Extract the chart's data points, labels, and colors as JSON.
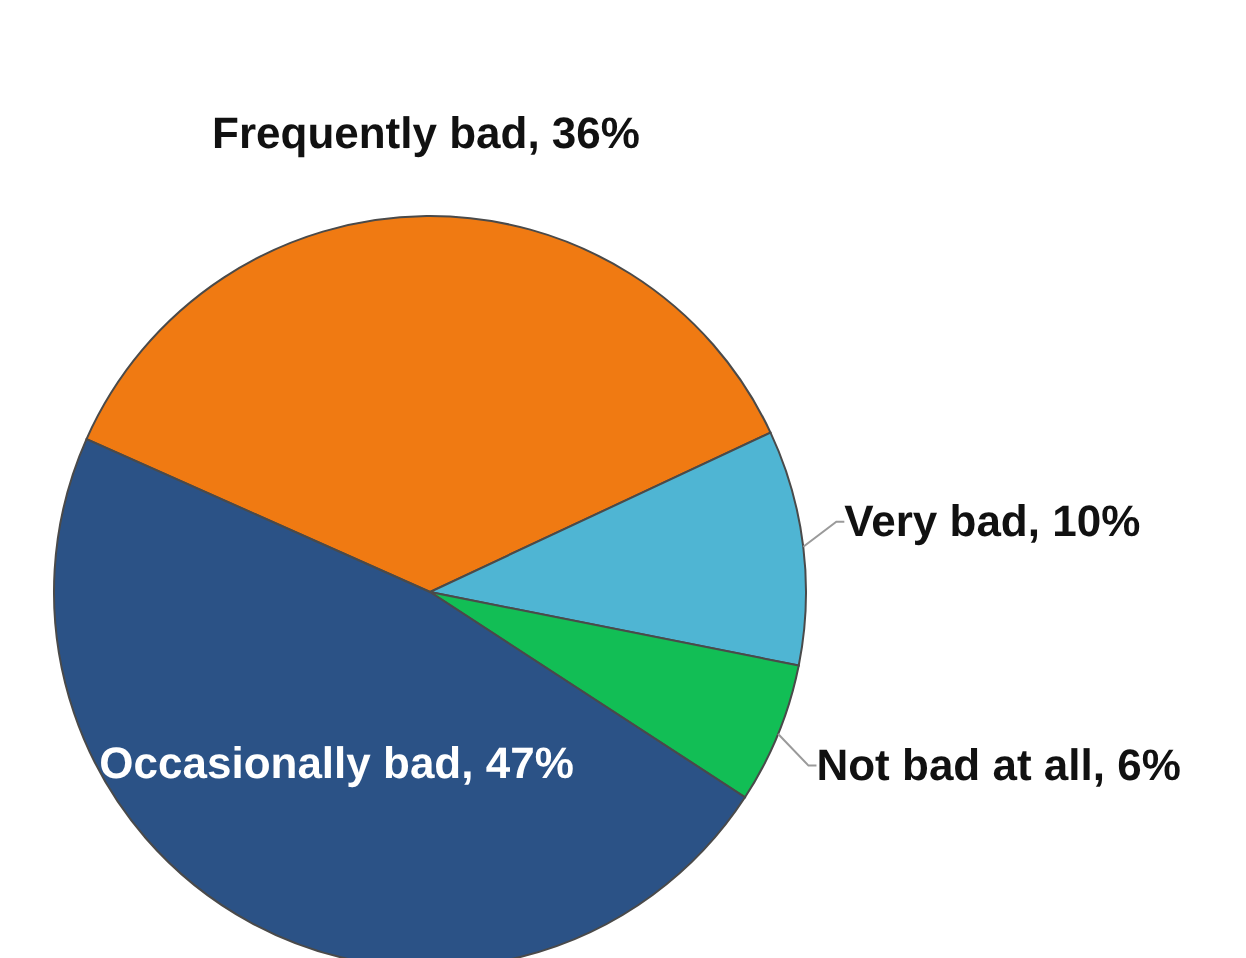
{
  "chart_data": {
    "type": "pie",
    "categories": [
      "Frequently bad",
      "Very bad",
      "Not bad at all",
      "Occasionally bad"
    ],
    "values": [
      36,
      10,
      6,
      47
    ],
    "value_labels": [
      "36%",
      "10%",
      "6%",
      "47%"
    ],
    "colors": [
      "#f07a12",
      "#4fb5d3",
      "#12be55",
      "#2b5286"
    ],
    "data_labels": true,
    "legend": false
  }
}
